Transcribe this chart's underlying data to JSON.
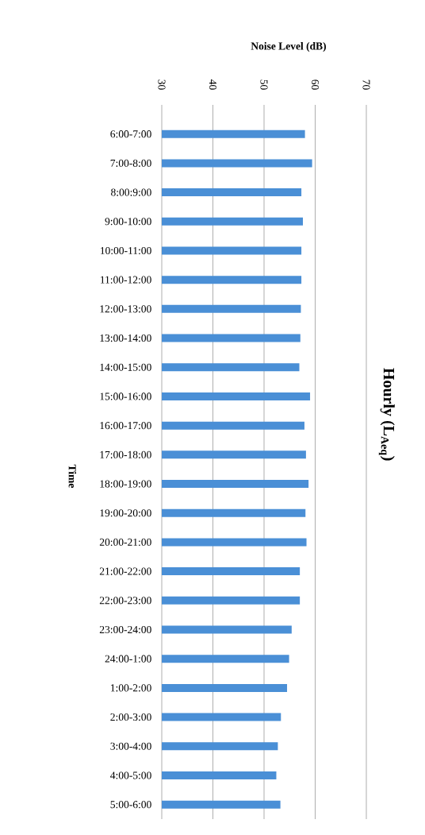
{
  "chart_data": {
    "type": "bar",
    "orientation": "horizontal",
    "title": "Hourly (L$_{Aeq}$)",
    "xlabel": "Noise Level (dB)",
    "ylabel": "Time",
    "categories": [
      "6:00-7:00",
      "7:00-8:00",
      "8:00:9:00",
      "9:00-10:00",
      "10:00-11:00",
      "11:00-12:00",
      "12:00-13:00",
      "13:00-14:00",
      "14:00-15:00",
      "15:00-16:00",
      "16:00-17:00",
      "17:00-18:00",
      "18:00-19:00",
      "19:00-20:00",
      "20:00-21:00",
      "21:00-22:00",
      "22:00-23:00",
      "23:00-24:00",
      "24:00-1:00",
      "1:00-2:00",
      "2:00-3:00",
      "3:00-4:00",
      "4:00-5:00",
      "5:00-6:00"
    ],
    "values": [
      58.0,
      59.4,
      57.3,
      57.6,
      57.3,
      57.3,
      57.2,
      57.1,
      56.9,
      59.0,
      57.9,
      58.2,
      58.7,
      58.1,
      58.3,
      57.0,
      57.0,
      55.4,
      54.9,
      54.5,
      53.3,
      52.7,
      52.4,
      53.2
    ],
    "color": "#4a8fd6",
    "xlim": [
      30,
      70
    ],
    "xticks": [
      30,
      40,
      50,
      60,
      70
    ],
    "grid": "x"
  }
}
